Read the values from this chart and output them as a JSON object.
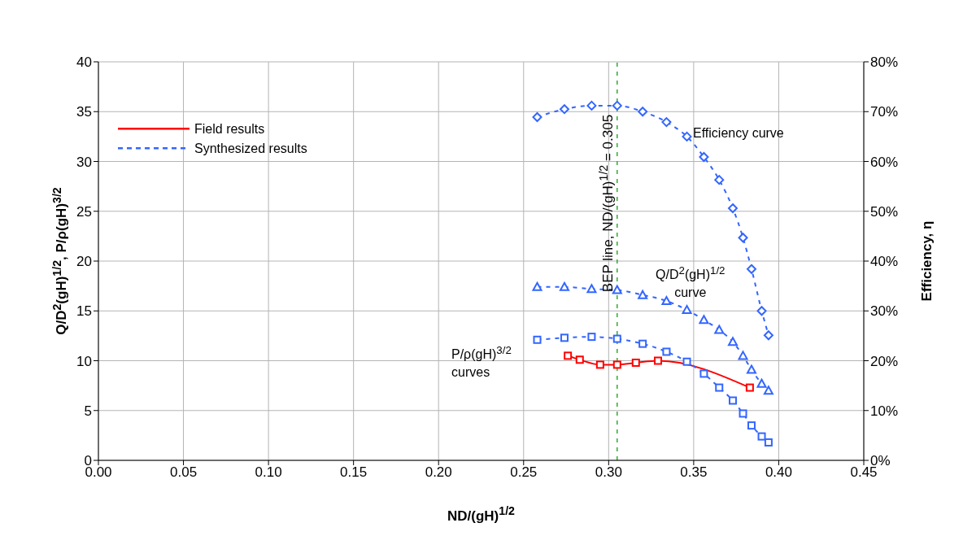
{
  "chart_data": {
    "type": "line",
    "xlabel": "ND/(gH)$^{1/2}$",
    "ylabel": "Q/D$^{2}$(gH)$^{1/2}$, P/ρ(gH)$^{3/2}$",
    "y2label": "Efficiency, η",
    "xlim": [
      0,
      0.45
    ],
    "xticks": [
      {
        "value": 0,
        "label": "0.00"
      },
      0.05,
      {
        "value": 0.1,
        "label": "0.10"
      },
      0.15,
      {
        "value": 0.2,
        "label": "0.20"
      },
      0.25,
      {
        "value": 0.3,
        "label": "0.30"
      },
      0.35,
      {
        "value": 0.4,
        "label": "0.40"
      },
      0.45
    ],
    "ylim": [
      0,
      40
    ],
    "yticks": [
      0,
      5,
      10,
      15,
      20,
      25,
      30,
      35,
      40
    ],
    "y2lim": [
      0,
      80
    ],
    "y2ticks": [
      {
        "value": 0,
        "label": "0%"
      },
      {
        "value": 10,
        "label": "10%"
      },
      {
        "value": 20,
        "label": "20%"
      },
      {
        "value": 30,
        "label": "30%"
      },
      {
        "value": 40,
        "label": "40%"
      },
      {
        "value": 50,
        "label": "50%"
      },
      {
        "value": 60,
        "label": "60%"
      },
      {
        "value": 70,
        "label": "70%"
      },
      {
        "value": 80,
        "label": "80%"
      }
    ],
    "grid": true,
    "legend": "top left",
    "series": [
      {
        "name": "Field results",
        "color": "#ff0000",
        "marker": "square",
        "line_style": "solid",
        "x": [
          0.276,
          0.283,
          0.295,
          0.305,
          0.316,
          0.329,
          0.383
        ],
        "values": [
          10.5,
          10.1,
          9.6,
          9.6,
          9.8,
          10.0,
          7.3
        ]
      },
      {
        "name": "Synthesized results",
        "color": "#3366ff",
        "marker": "triangle",
        "line_style": "dashed",
        "x": [
          0.258,
          0.274,
          0.29,
          0.305,
          0.32,
          0.334,
          0.346,
          0.356,
          0.365,
          0.373,
          0.379,
          0.384,
          0.39,
          0.394
        ],
        "values": [
          17.4,
          17.4,
          17.2,
          17.1,
          16.6,
          16.0,
          15.1,
          14.1,
          13.1,
          11.9,
          10.5,
          9.1,
          7.7,
          7.0
        ]
      },
      {
        "color": "#3366ff",
        "marker": "square",
        "line_style": "dashed",
        "x": [
          0.258,
          0.274,
          0.29,
          0.305,
          0.32,
          0.334,
          0.346,
          0.356,
          0.365,
          0.373,
          0.379,
          0.384,
          0.39,
          0.394
        ],
        "values": [
          12.1,
          12.3,
          12.4,
          12.2,
          11.7,
          10.9,
          9.9,
          8.7,
          7.3,
          6.0,
          4.7,
          3.5,
          2.4,
          1.8
        ]
      },
      {
        "color": "#3366ff",
        "marker": "diamond",
        "line_style": "dashed",
        "axis": "y2",
        "x": [
          0.258,
          0.274,
          0.29,
          0.305,
          0.32,
          0.334,
          0.346,
          0.356,
          0.365,
          0.373,
          0.379,
          0.384,
          0.39,
          0.394
        ],
        "values": [
          68.9,
          70.5,
          71.2,
          71.2,
          70.0,
          67.9,
          65.0,
          60.9,
          56.3,
          50.6,
          44.7,
          38.4,
          30.0,
          25.1
        ]
      }
    ],
    "ref_lines": [
      {
        "axis": "x",
        "value": 0.305,
        "label": "BEP line, ND/(gH)$^{1/2}$ = 0.305",
        "color": "#33aa33",
        "line_style": "dashed"
      }
    ],
    "annotations": [
      "Efficiency curve",
      "Q/D$^{2}$(gH)$^{1/2}$\ncurve",
      "P/ρ(gH)$^{3/2}$\ncurves"
    ]
  }
}
